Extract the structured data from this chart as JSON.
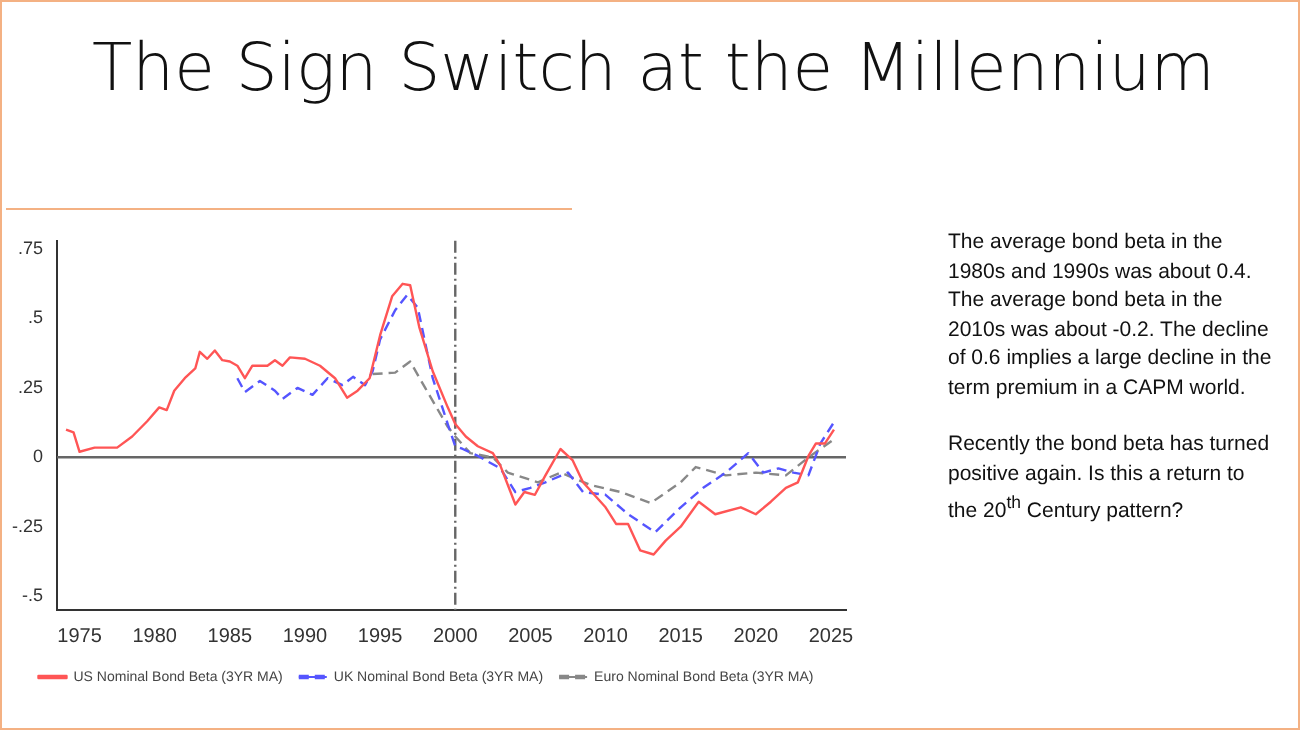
{
  "chart_data": {
    "type": "line",
    "title": "The Sign Switch at the Millennium",
    "xlim": [
      1973.5,
      2026
    ],
    "xticks": [
      1975,
      1980,
      1985,
      1990,
      1995,
      2000,
      2005,
      2010,
      2015,
      2020,
      2025
    ],
    "ylim": [
      -0.55,
      0.78
    ],
    "yticks": [
      {
        "value": 0.75,
        "label": ".75"
      },
      {
        "value": 0.5,
        "label": ".5"
      },
      {
        "value": 0.25,
        "label": ".25"
      },
      0,
      {
        "value": -0.25,
        "label": "-.25"
      },
      {
        "value": -0.5,
        "label": "-.5"
      }
    ],
    "grid": false,
    "legend": "bottom",
    "marker": "none",
    "ref_lines": [
      {
        "axis": "x",
        "value": 2000,
        "color": "#666666",
        "line_style": "dashed"
      },
      {
        "axis": "y",
        "value": 0,
        "color": "#666666",
        "line_style": "solid"
      }
    ],
    "series": [
      {
        "name": "US Nominal Bond Beta (3YR MA)",
        "color": "#ff5555",
        "line_style": "solid",
        "x": [
          1974.1,
          1974.6,
          1975,
          1976,
          1977.5,
          1978.5,
          1979.5,
          1980.3,
          1980.8,
          1981.3,
          1982,
          1982.7,
          1983,
          1983.5,
          1984,
          1984.5,
          1985,
          1985.5,
          1986,
          1986.5,
          1987.5,
          1988,
          1988.5,
          1989,
          1990,
          1991,
          1992,
          1992.8,
          1993.5,
          1994.3,
          1995,
          1995.8,
          1996.5,
          1997,
          1997.6,
          1998.5,
          1999.5,
          2000,
          2000.7,
          2001.5,
          2002.5,
          2003,
          2004,
          2004.6,
          2005.3,
          2006,
          2007,
          2007.8,
          2008.5,
          2010,
          2010.7,
          2011.5,
          2012.3,
          2013.2,
          2014,
          2015,
          2016.2,
          2017.3,
          2019,
          2020,
          2021,
          2022,
          2022.8,
          2023.5,
          2024,
          2024.6,
          2025.2
        ],
        "values": [
          0.1,
          0.09,
          0.02,
          0.035,
          0.035,
          0.075,
          0.13,
          0.18,
          0.17,
          0.24,
          0.285,
          0.32,
          0.38,
          0.355,
          0.385,
          0.35,
          0.345,
          0.33,
          0.285,
          0.33,
          0.33,
          0.35,
          0.33,
          0.36,
          0.355,
          0.33,
          0.285,
          0.215,
          0.24,
          0.285,
          0.44,
          0.58,
          0.625,
          0.62,
          0.47,
          0.31,
          0.18,
          0.12,
          0.075,
          0.04,
          0.015,
          -0.03,
          -0.17,
          -0.125,
          -0.135,
          -0.065,
          0.03,
          -0.01,
          -0.09,
          -0.18,
          -0.24,
          -0.24,
          -0.335,
          -0.35,
          -0.3,
          -0.25,
          -0.16,
          -0.205,
          -0.18,
          -0.205,
          -0.16,
          -0.11,
          -0.09,
          0.005,
          0.05,
          0.05,
          0.1
        ]
      },
      {
        "name": "UK Nominal Bond Beta (3YR MA)",
        "color": "#5555ff",
        "line_style": "dashed",
        "x": [
          1985.5,
          1986,
          1987,
          1988,
          1988.5,
          1989.5,
          1990.5,
          1991.5,
          1992.5,
          1993.2,
          1994,
          1994.5,
          1995,
          1996,
          1996.8,
          1997.5,
          1998.5,
          1999.5,
          2000,
          2000.5,
          2001.5,
          2003,
          2004,
          2005,
          2006,
          2007.5,
          2008.5,
          2010,
          2011.5,
          2013.3,
          2015,
          2016.5,
          2018,
          2019.5,
          2020.5,
          2021.5,
          2022.5,
          2023.5,
          2024.3,
          2025.3
        ],
        "values": [
          0.285,
          0.235,
          0.275,
          0.24,
          0.21,
          0.25,
          0.225,
          0.285,
          0.26,
          0.29,
          0.26,
          0.31,
          0.425,
          0.53,
          0.585,
          0.54,
          0.285,
          0.12,
          0.04,
          0.03,
          0.005,
          -0.04,
          -0.125,
          -0.11,
          -0.09,
          -0.055,
          -0.125,
          -0.135,
          -0.205,
          -0.27,
          -0.18,
          -0.11,
          -0.055,
          0.015,
          -0.055,
          -0.04,
          -0.055,
          -0.065,
          0.05,
          0.135
        ]
      },
      {
        "name": "Euro Nominal Bond Beta (3YR MA)",
        "color": "#888888",
        "line_style": "dashed",
        "x": [
          1994.5,
          1996,
          1997,
          1998,
          1999.5,
          2000,
          2001,
          2002.5,
          2003.5,
          2005.5,
          2007,
          2009,
          2011,
          2013,
          2015,
          2016,
          2018,
          2020,
          2022,
          2023.5,
          2025.2
        ],
        "values": [
          0.3,
          0.305,
          0.345,
          0.25,
          0.11,
          0.075,
          0.015,
          0,
          -0.055,
          -0.09,
          -0.055,
          -0.1,
          -0.125,
          -0.165,
          -0.09,
          -0.035,
          -0.065,
          -0.055,
          -0.065,
          0,
          0.065
        ]
      }
    ],
    "annotations": [
      "The average bond beta in the 1980s and 1990s was about 0.4.  The average bond beta in the 2010s was about -0.2.  The decline of 0.6 implies a large decline in the term premium in a CAPM world.",
      "Recently the bond beta has turned positive again.  Is this a return to the 20$^{th}$ Century pattern?"
    ]
  }
}
